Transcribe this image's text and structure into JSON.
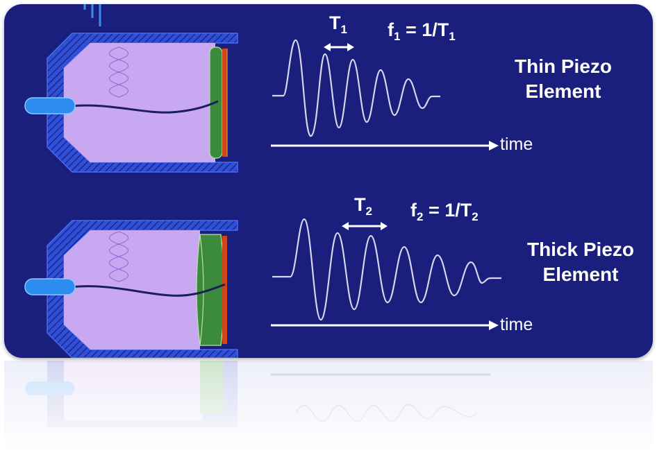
{
  "colors": {
    "background": "#1a1e7c",
    "housing": "#2f4fd8",
    "chamber": "#c9a8f2",
    "piezo_green": "#3c8a3c",
    "electrode_red": "#d0441a",
    "connector": "#2c8cf0",
    "wave": "#d6d6ee"
  },
  "thin": {
    "period_symbol": "T",
    "period_sub": "1",
    "freq_symbol": "f",
    "freq_sub": "1",
    "freq_eq": " = 1/T",
    "freq_eq_sub": "1",
    "caption_line1": "Thin Piezo",
    "caption_line2": "Element",
    "time_label": "time"
  },
  "thick": {
    "period_symbol": "T",
    "period_sub": "2",
    "freq_symbol": "f",
    "freq_sub": "2",
    "freq_eq": " = 1/T",
    "freq_eq_sub": "2",
    "caption_line1": "Thick Piezo",
    "caption_line2": "Element",
    "time_label": "time"
  }
}
